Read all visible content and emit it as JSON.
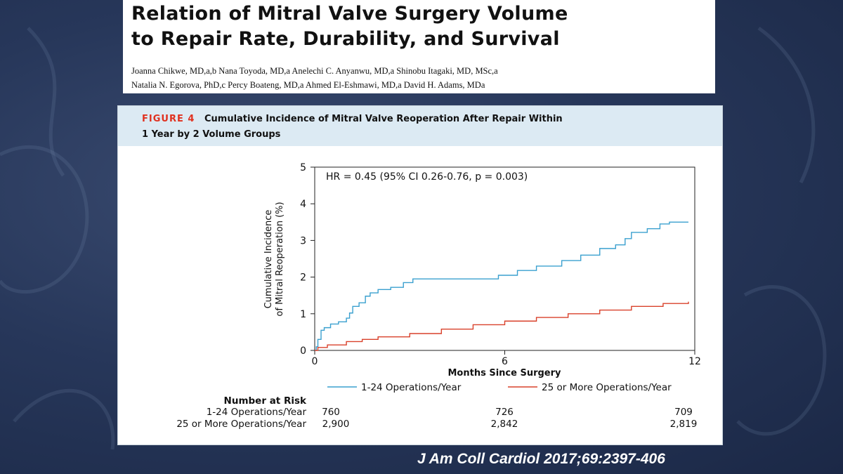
{
  "slide": {
    "title_line1": "Relation of Mitral Valve Surgery Volume",
    "title_line2": "to Repair Rate, Durability, and Survival",
    "authors_line1": "Joanna Chikwe, MD,a,b Nana Toyoda, MD,a Anelechi C. Anyanwu, MD,a Shinobu Itagaki, MD, MSc,a",
    "authors_line2": "Natalia N. Egorova, PhD,c Percy Boateng, MD,a Ahmed El-Eshmawi, MD,a David H. Adams, MDa",
    "citation": "J Am Coll Cardiol 2017;69:2397-406"
  },
  "figure": {
    "label": "FIGURE 4",
    "caption_line1": "Cumulative Incidence of Mitral Valve Reoperation After Repair Within",
    "caption_line2": "1 Year by 2 Volume Groups"
  },
  "chart_data": {
    "type": "line",
    "annotation": "HR = 0.45 (95% CI 0.26-0.76, p = 0.003)",
    "xlabel": "Months Since Surgery",
    "ylabel_line1": "Cumulative Incidence",
    "ylabel_line2": "of Mitral Reoperation (%)",
    "xlim": [
      0,
      12
    ],
    "ylim": [
      0,
      5
    ],
    "x_ticks": [
      "0",
      "6",
      "12"
    ],
    "y_ticks": [
      "0",
      "1",
      "2",
      "3",
      "4",
      "5"
    ],
    "legend_placement": "bottom",
    "series": [
      {
        "name": "1-24 Operations/Year",
        "color": "#3aa0cf",
        "points": [
          [
            0,
            0
          ],
          [
            0.05,
            0.1
          ],
          [
            0.1,
            0.3
          ],
          [
            0.2,
            0.55
          ],
          [
            0.3,
            0.62
          ],
          [
            0.5,
            0.72
          ],
          [
            0.75,
            0.78
          ],
          [
            1.0,
            0.88
          ],
          [
            1.1,
            1.02
          ],
          [
            1.2,
            1.2
          ],
          [
            1.4,
            1.3
          ],
          [
            1.6,
            1.48
          ],
          [
            1.75,
            1.57
          ],
          [
            2.0,
            1.66
          ],
          [
            2.4,
            1.72
          ],
          [
            2.8,
            1.85
          ],
          [
            3.1,
            1.95
          ],
          [
            4.0,
            1.95
          ],
          [
            5.5,
            1.95
          ],
          [
            5.8,
            2.05
          ],
          [
            6.4,
            2.18
          ],
          [
            7.0,
            2.3
          ],
          [
            7.8,
            2.45
          ],
          [
            8.4,
            2.6
          ],
          [
            9.0,
            2.78
          ],
          [
            9.5,
            2.88
          ],
          [
            9.8,
            3.05
          ],
          [
            10.0,
            3.22
          ],
          [
            10.5,
            3.32
          ],
          [
            10.9,
            3.45
          ],
          [
            11.2,
            3.5
          ],
          [
            11.8,
            3.5
          ]
        ]
      },
      {
        "name": "25 or More Operations/Year",
        "color": "#d9412b",
        "points": [
          [
            0,
            0
          ],
          [
            0.1,
            0.08
          ],
          [
            0.4,
            0.15
          ],
          [
            1.0,
            0.24
          ],
          [
            1.5,
            0.3
          ],
          [
            2.0,
            0.37
          ],
          [
            3.0,
            0.46
          ],
          [
            4.0,
            0.58
          ],
          [
            5.0,
            0.7
          ],
          [
            6.0,
            0.8
          ],
          [
            7.0,
            0.9
          ],
          [
            8.0,
            1.0
          ],
          [
            9.0,
            1.1
          ],
          [
            10.0,
            1.2
          ],
          [
            11.0,
            1.28
          ],
          [
            11.8,
            1.33
          ]
        ]
      }
    ],
    "risk_table": {
      "title": "Number at Risk",
      "columns": [
        "0",
        "6",
        "12"
      ],
      "rows": [
        {
          "label": "1-24 Operations/Year",
          "values": [
            "760",
            "726",
            "709"
          ]
        },
        {
          "label": "25 or More Operations/Year",
          "values": [
            "2,900",
            "2,842",
            "2,819"
          ]
        }
      ]
    }
  }
}
